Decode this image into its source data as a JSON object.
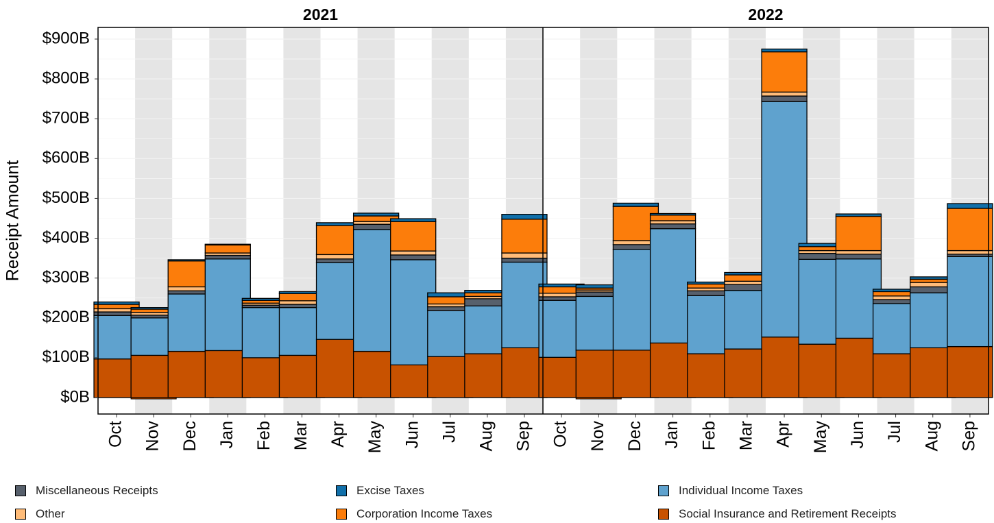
{
  "chart_data": {
    "type": "bar",
    "stacked": true,
    "ylabel": "Receipt Amount",
    "xlabel": "",
    "ylim": [
      -40,
      930
    ],
    "yticks": [
      0,
      100,
      200,
      300,
      400,
      500,
      600,
      700,
      800,
      900
    ],
    "ytick_labels": [
      "$0B",
      "$100B",
      "$200B",
      "$300B",
      "$400B",
      "$500B",
      "$600B",
      "$700B",
      "$800B",
      "$900B"
    ],
    "grid": true,
    "legend_position": "bottom",
    "panels": [
      {
        "title": "2021",
        "categories": [
          "Oct",
          "Nov",
          "Dec",
          "Jan",
          "Feb",
          "Mar",
          "Apr",
          "May",
          "Jun",
          "Jul",
          "Aug",
          "Sep"
        ],
        "series": [
          {
            "name": "Social Insurance and Retirement Receipts",
            "values": [
              97,
              106,
              116,
              118,
              100,
              106,
              146,
              116,
              82,
              103,
              110,
              125
            ]
          },
          {
            "name": "Individual Income Taxes",
            "values": [
              109,
              94,
              144,
              230,
              126,
              120,
              193,
              306,
              264,
              115,
              120,
              215
            ]
          },
          {
            "name": "Miscellaneous Receipts",
            "values": [
              9,
              7,
              8,
              9,
              6,
              8,
              9,
              13,
              12,
              10,
              18,
              10
            ]
          },
          {
            "name": "Other",
            "values": [
              8,
              7,
              10,
              6,
              5,
              9,
              11,
              7,
              10,
              7,
              6,
              13
            ]
          },
          {
            "name": "Corporation Income Taxes",
            "values": [
              11,
              8,
              65,
              20,
              7,
              18,
              73,
              14,
              74,
              18,
              9,
              85
            ]
          },
          {
            "name": "Excise Taxes",
            "values": [
              6,
              4,
              3,
              2,
              5,
              5,
              7,
              7,
              7,
              10,
              6,
              12
            ]
          }
        ]
      },
      {
        "title": "2022",
        "categories": [
          "Oct",
          "Nov",
          "Dec",
          "Jan",
          "Feb",
          "Mar",
          "Apr",
          "May",
          "Jun",
          "Jul",
          "Aug",
          "Sep"
        ],
        "series": [
          {
            "name": "Social Insurance and Retirement Receipts",
            "values": [
              101,
              119,
              119,
              137,
              110,
              122,
              152,
              134,
              149,
              110,
              125,
              128
            ]
          },
          {
            "name": "Individual Income Taxes",
            "values": [
              143,
              135,
              253,
              287,
              146,
              147,
              591,
              213,
              199,
              126,
              138,
              226
            ]
          },
          {
            "name": "Miscellaneous Receipts",
            "values": [
              9,
              11,
              12,
              12,
              12,
              15,
              14,
              15,
              12,
              10,
              15,
              6
            ]
          },
          {
            "name": "Other",
            "values": [
              9,
              5,
              10,
              8,
              7,
              8,
              10,
              7,
              9,
              9,
              11,
              9
            ]
          },
          {
            "name": "Corporation Income Taxes",
            "values": [
              16,
              5,
              86,
              14,
              10,
              16,
              101,
              10,
              86,
              11,
              8,
              106
            ]
          },
          {
            "name": "Excise Taxes",
            "values": [
              7,
              8,
              8,
              4,
              5,
              6,
              7,
              8,
              6,
              6,
              6,
              12
            ]
          }
        ]
      }
    ]
  },
  "colors": {
    "Social Insurance and Retirement Receipts": "#c85200",
    "Individual Income Taxes": "#5fa2ce",
    "Miscellaneous Receipts": "#57606c",
    "Other": "#ffbc79",
    "Corporation Income Taxes": "#fc7d0b",
    "Excise Taxes": "#1170aa"
  },
  "legend": [
    {
      "label": "Miscellaneous Receipts",
      "color": "#57606c"
    },
    {
      "label": "Excise Taxes",
      "color": "#1170aa"
    },
    {
      "label": "Individual Income Taxes",
      "color": "#5fa2ce"
    },
    {
      "label": "Other",
      "color": "#ffbc79"
    },
    {
      "label": "Corporation Income Taxes",
      "color": "#fc7d0b"
    },
    {
      "label": "Social Insurance and Retirement Receipts",
      "color": "#c85200"
    }
  ]
}
